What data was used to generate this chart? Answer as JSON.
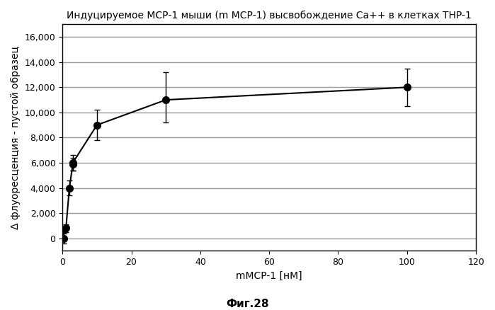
{
  "x": [
    0.3,
    0.5,
    1.0,
    2.0,
    3.0,
    3.0,
    10.0,
    30.0,
    100.0
  ],
  "y": [
    0,
    700,
    800,
    4000,
    5900,
    6000,
    9000,
    11000,
    12000
  ],
  "yerr_low": [
    400,
    200,
    300,
    600,
    500,
    600,
    1200,
    1800,
    1500
  ],
  "yerr_high": [
    400,
    200,
    300,
    600,
    500,
    600,
    1200,
    2200,
    1500
  ],
  "title": "Индуцируемое МСР-1 мыши (m МСР-1) высвобождение Ca++ в клетках THP-1",
  "xlabel": "mMCP-1 [нМ]",
  "ylabel": "Δ флуоресценция - пустой образец",
  "caption": "Фиг.28",
  "xlim": [
    0,
    120
  ],
  "ylim": [
    -1000,
    17000
  ],
  "yticks": [
    0,
    2000,
    4000,
    6000,
    8000,
    10000,
    12000,
    14000,
    16000
  ],
  "ytick_labels": [
    "0",
    "2,000",
    "4,000",
    "6,000",
    "8,000",
    "10,000",
    "12,000",
    "14,000",
    "16,000"
  ],
  "xticks": [
    0,
    20,
    40,
    60,
    80,
    100,
    120
  ],
  "xtick_labels": [
    "0",
    "20",
    "40",
    "60",
    "80",
    "100",
    "120"
  ],
  "line_color": "#000000",
  "marker_color": "#000000",
  "marker_size": 7,
  "line_width": 1.5,
  "title_fontsize": 10,
  "label_fontsize": 10,
  "tick_fontsize": 9,
  "caption_fontsize": 11,
  "background_color": "#ffffff",
  "grid_color": "#999999"
}
